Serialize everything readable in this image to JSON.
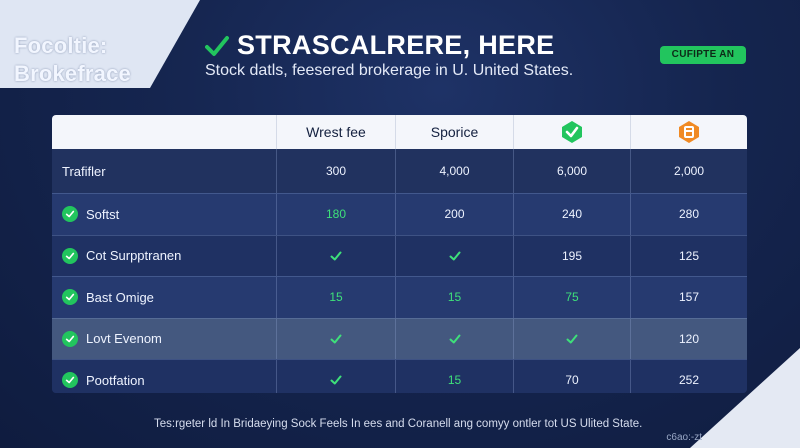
{
  "brand": {
    "line1": "Focoltie:",
    "line2": "Brokefrace"
  },
  "header": {
    "title": "STRASCALRERE, HERE",
    "subtitle": "Stock datls, feesered brokerage in U. United States.",
    "cta_label": "CUFIPTE AN"
  },
  "table": {
    "columns": [
      "",
      "Wrest fee",
      "Sporice",
      "green-check-badge-icon",
      "orange-badge-icon"
    ],
    "first_row": {
      "label": "Trafifler",
      "values": [
        "300",
        "4,000",
        "6,000",
        "2,000"
      ]
    },
    "rows": [
      {
        "label": "Softst",
        "cells": [
          {
            "v": "180",
            "g": true
          },
          {
            "v": "200"
          },
          {
            "v": "240"
          },
          {
            "v": "280"
          }
        ]
      },
      {
        "label": "Cot Surpptranen",
        "cells": [
          {
            "check": true
          },
          {
            "check": true
          },
          {
            "v": "195"
          },
          {
            "v": "125"
          }
        ]
      },
      {
        "label": "Bast Omige",
        "cells": [
          {
            "v": "15",
            "g": true
          },
          {
            "v": "15",
            "g": true
          },
          {
            "v": "75",
            "g": true
          },
          {
            "v": "157"
          }
        ]
      },
      {
        "label": "Lovt Evenom",
        "cells": [
          {
            "check": true
          },
          {
            "check": true
          },
          {
            "check": true
          },
          {
            "v": "120"
          }
        ]
      },
      {
        "label": "Pootfation",
        "cells": [
          {
            "check": true
          },
          {
            "v": "15",
            "g": true
          },
          {
            "v": "70"
          },
          {
            "v": "252"
          }
        ]
      }
    ]
  },
  "footnote": "Tes:rgeter ld In Bridaeying Sock Feels In ees and Coranell ang comyy ontler tot US Ulited State.",
  "footnote_small": "c6ao:-zt",
  "colors": {
    "accent_green": "#22c55e",
    "badge_orange": "#f08a24",
    "background": "#14234a"
  }
}
